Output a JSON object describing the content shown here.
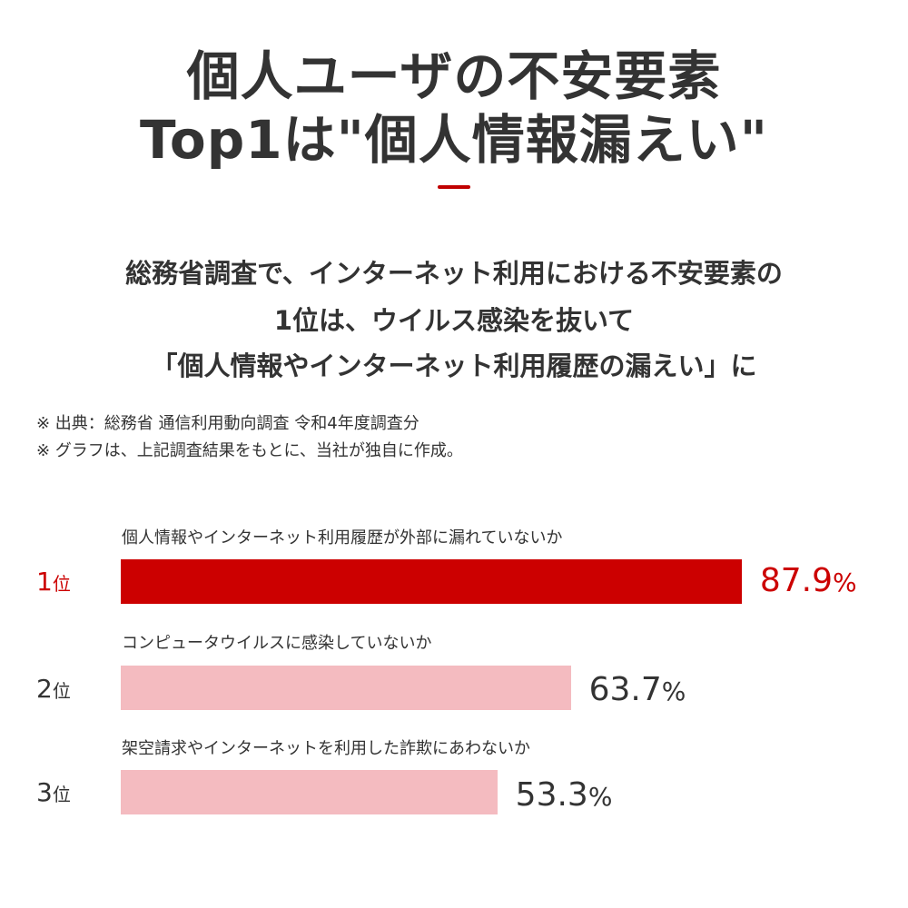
{
  "header": {
    "title_line1": "個人ユーザの不安要素",
    "title_line2": "Top1は\"個人情報漏えい\"",
    "accent_color": "#c00000"
  },
  "subtitle": {
    "line1": "総務省調査で、インターネット利用における不安要素の",
    "line2": "1位は、ウイルス感染を抜いて",
    "line3": "「個人情報やインターネット利用履歴の漏えい」に"
  },
  "notes": {
    "source": "※ 出典：総務省 通信利用動向調査 令和4年度調査分",
    "disclaimer": "※ グラフは、上記調査結果をもとに、当社が独自に作成。"
  },
  "ranks": [
    {
      "rank_num": "1",
      "rank_suffix": "位",
      "label": "個人情報やインターネット利用履歴が外部に漏れていないか",
      "value_num": "87.9",
      "value_unit": "%",
      "bar_color": "#cc0000",
      "text_color": "#cc0000"
    },
    {
      "rank_num": "2",
      "rank_suffix": "位",
      "label": "コンピュータウイルスに感染していないか",
      "value_num": "63.7",
      "value_unit": "%",
      "bar_color": "#f4bbc0",
      "text_color": "#333333"
    },
    {
      "rank_num": "3",
      "rank_suffix": "位",
      "label": "架空請求やインターネットを利用した詐欺にあわないか",
      "value_num": "53.3",
      "value_unit": "%",
      "bar_color": "#f4bbc0",
      "text_color": "#333333"
    }
  ],
  "chart_data": {
    "type": "bar",
    "orientation": "horizontal",
    "title": "個人ユーザの不安要素 Top1は\"個人情報漏えい\"",
    "categories": [
      "個人情報やインターネット利用履歴が外部に漏れていないか",
      "コンピュータウイルスに感染していないか",
      "架空請求やインターネットを利用した詐欺にあわないか"
    ],
    "rank_labels": [
      "1位",
      "2位",
      "3位"
    ],
    "values": [
      87.9,
      63.7,
      53.3
    ],
    "unit": "%",
    "xlabel": "",
    "ylabel": "",
    "grid": false,
    "legend": "none",
    "colors": [
      "#cc0000",
      "#f4bbc0",
      "#f4bbc0"
    ],
    "source": "総務省 通信利用動向調査 令和4年度調査分"
  }
}
